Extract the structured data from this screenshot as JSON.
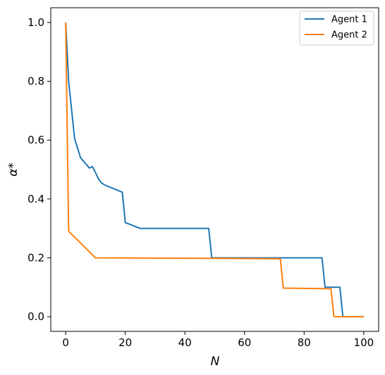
{
  "chart_data": {
    "type": "line",
    "title": "",
    "xlabel": "N",
    "ylabel": "α*",
    "xlim": [
      -5,
      105
    ],
    "ylim": [
      -0.05,
      1.05
    ],
    "xticks": [
      0,
      20,
      40,
      60,
      80,
      100
    ],
    "yticks": [
      0.0,
      0.2,
      0.4,
      0.6,
      0.8,
      1.0
    ],
    "xtick_labels": [
      "0",
      "20",
      "40",
      "60",
      "80",
      "100"
    ],
    "ytick_labels": [
      "0.0",
      "0.2",
      "0.4",
      "0.6",
      "0.8",
      "1.0"
    ],
    "grid": false,
    "legend_position": "top-right",
    "series": [
      {
        "name": "Agent 1",
        "color": "#1f77b4",
        "x": [
          0,
          1,
          3,
          5,
          8,
          9,
          10,
          11,
          12,
          13,
          19,
          20,
          25,
          48,
          49,
          86,
          87,
          92,
          93,
          100
        ],
        "y": [
          1.0,
          0.8,
          0.605,
          0.54,
          0.505,
          0.51,
          0.49,
          0.468,
          0.455,
          0.448,
          0.423,
          0.32,
          0.3,
          0.3,
          0.2,
          0.2,
          0.1,
          0.1,
          0.0,
          0.0
        ]
      },
      {
        "name": "Agent 2",
        "color": "#ff7f0e",
        "x": [
          0,
          1,
          10,
          72,
          73,
          89,
          90,
          100
        ],
        "y": [
          1.0,
          0.29,
          0.2,
          0.197,
          0.097,
          0.095,
          0.0,
          0.0
        ]
      }
    ]
  }
}
